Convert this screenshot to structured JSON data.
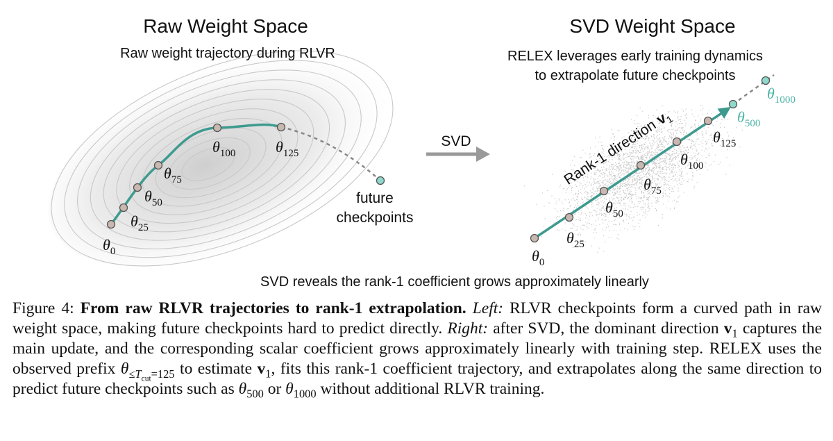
{
  "left_panel": {
    "title": "Raw Weight Space",
    "subtitle": "Raw weight trajectory during RLVR",
    "checkpoints": [
      {
        "symbol": "θ",
        "subscript": "0"
      },
      {
        "symbol": "θ",
        "subscript": "25"
      },
      {
        "symbol": "θ",
        "subscript": "50"
      },
      {
        "symbol": "θ",
        "subscript": "75"
      },
      {
        "symbol": "θ",
        "subscript": "100"
      },
      {
        "symbol": "θ",
        "subscript": "125"
      }
    ],
    "future_label": [
      "future",
      "checkpoints"
    ]
  },
  "transform": {
    "label": "SVD"
  },
  "right_panel": {
    "title": "SVD Weight Space",
    "subtitle": [
      "RELEX leverages early training dynamics",
      "to extrapolate future checkpoints"
    ],
    "direction_label": {
      "text": "Rank-1 direction",
      "vector": "v",
      "subscript": "1"
    },
    "checkpoints": [
      {
        "symbol": "θ",
        "subscript": "0"
      },
      {
        "symbol": "θ",
        "subscript": "25"
      },
      {
        "symbol": "θ",
        "subscript": "50"
      },
      {
        "symbol": "θ",
        "subscript": "75"
      },
      {
        "symbol": "θ",
        "subscript": "100"
      },
      {
        "symbol": "θ",
        "subscript": "125"
      }
    ],
    "future_checkpoints": [
      {
        "symbol": "θ",
        "subscript": "500"
      },
      {
        "symbol": "θ",
        "subscript": "1000"
      }
    ]
  },
  "bottom_note": "SVD reveals the rank-1 coefficient grows approximately linearly",
  "caption": {
    "figure_label": "Figure 4:",
    "title": "From raw RLVR trajectories to rank-1 extrapolation.",
    "left_label": "Left:",
    "left_text": "RLVR checkpoints form a curved path in raw weight space, making future checkpoints hard to predict directly.",
    "right_label": "Right:",
    "right_text_1": "after SVD, the dominant direction",
    "vector_1": {
      "symbol": "v",
      "subscript": "1"
    },
    "right_text_2": "captures the main update, and the corresponding scalar coefficient grows approximately linearly with training step. RELEX uses the observed prefix",
    "prefix": {
      "symbol": "θ",
      "relation": "≤",
      "variable": "T",
      "variable_subscript": "cut",
      "value": "=125"
    },
    "right_text_3": "to estimate",
    "vector_2": {
      "symbol": "v",
      "subscript": "1"
    },
    "right_text_4": ", fits this rank-1 coefficient trajectory, and extrapolates along the same direction to predict future checkpoints such as",
    "example_1": {
      "symbol": "θ",
      "subscript": "500"
    },
    "conjunction": "or",
    "example_2": {
      "symbol": "θ",
      "subscript": "1000"
    },
    "right_text_5": "without additional RLVR training."
  }
}
